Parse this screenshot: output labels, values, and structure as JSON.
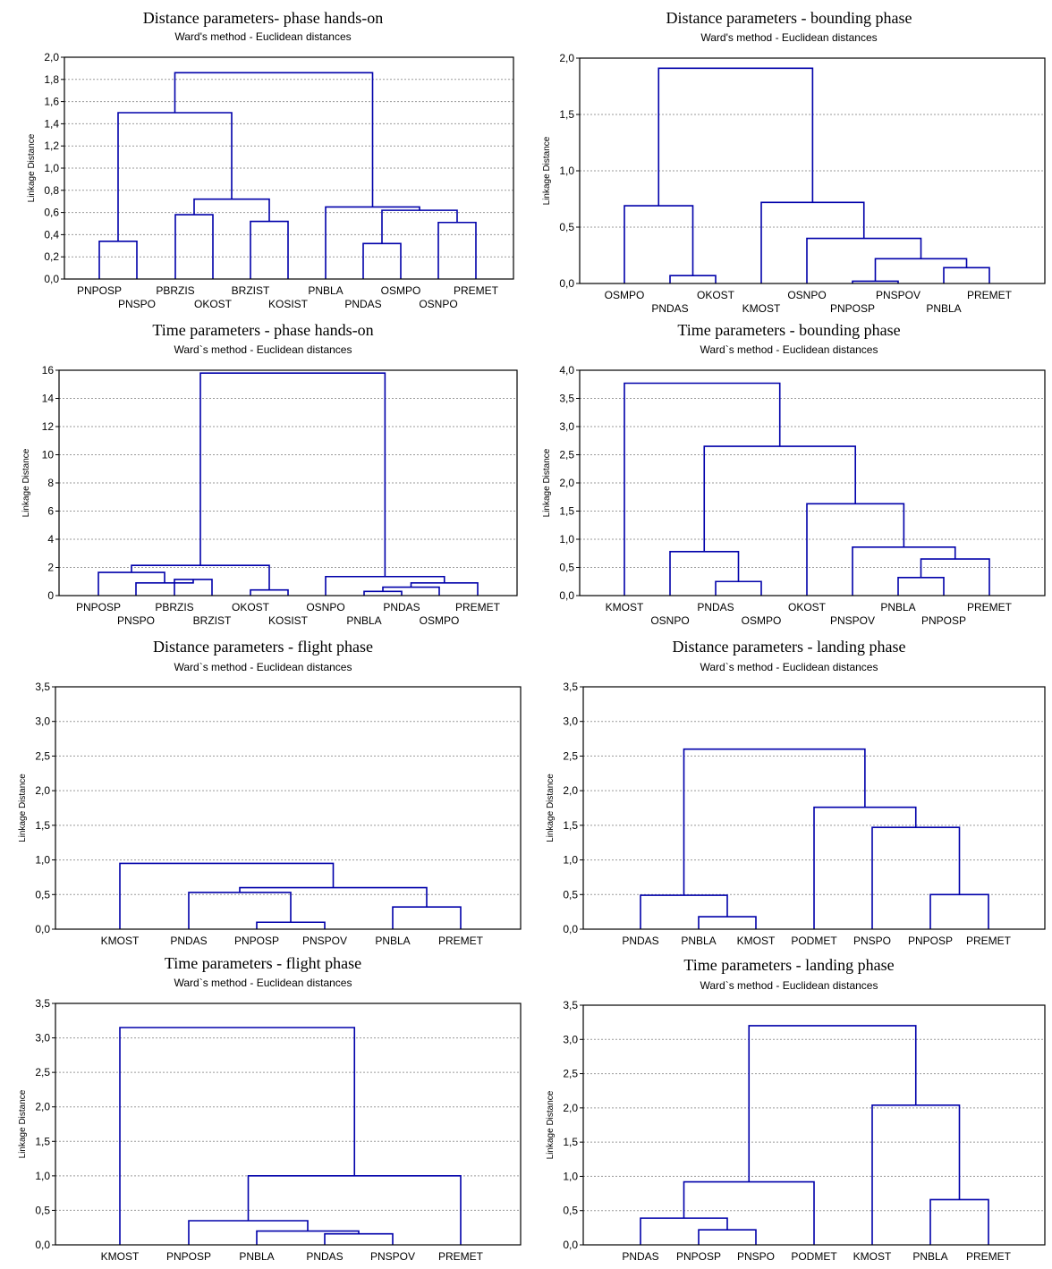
{
  "chart_data": [
    {
      "type": "dendrogram",
      "title": "Distance parameters- phase hands-on",
      "subtitle": "Ward's method - Euclidean distances",
      "ylabel": "Linkage Distance",
      "ylim": [
        0,
        2
      ],
      "yticks": [
        0,
        0.2,
        0.4,
        0.6,
        0.8,
        1.0,
        1.2,
        1.4,
        1.6,
        1.8,
        2.0
      ],
      "decimals": 1,
      "grid": true,
      "leaves": [
        "PNPOSP",
        "PNSPO",
        "PBRZIS",
        "OKOST",
        "BRZIST",
        "KOSIST",
        "PNBLA",
        "PNDAS",
        "OSMPO",
        "OSNPO",
        "PREMET"
      ],
      "merges": [
        {
          "a": 0,
          "b": 1,
          "h": 0.34
        },
        {
          "a": 2,
          "b": 3,
          "h": 0.58
        },
        {
          "a": 4,
          "b": 5,
          "h": 0.52
        },
        {
          "a": 12,
          "b": 13,
          "h": 0.72
        },
        {
          "a": 11,
          "b": 14,
          "h": 1.5
        },
        {
          "a": 7,
          "b": 8,
          "h": 0.32
        },
        {
          "a": 9,
          "b": 10,
          "h": 0.51
        },
        {
          "a": 16,
          "b": 17,
          "h": 0.62
        },
        {
          "a": 6,
          "b": 18,
          "h": 0.65
        },
        {
          "a": 15,
          "b": 19,
          "h": 1.86
        }
      ]
    },
    {
      "type": "dendrogram",
      "title": "Distance parameters - bounding phase",
      "subtitle": "Ward's method - Euclidean distances",
      "ylabel": "Linkage Distance",
      "ylim": [
        0,
        2
      ],
      "yticks": [
        0,
        0.5,
        1.0,
        1.5,
        2.0
      ],
      "decimals": 1,
      "grid": true,
      "leaves": [
        "OSMPO",
        "PNDAS",
        "OKOST",
        "KMOST",
        "OSNPO",
        "PNPOSP",
        "PNSPOV",
        "PNBLA",
        "PREMET"
      ],
      "merges": [
        {
          "a": 1,
          "b": 2,
          "h": 0.07
        },
        {
          "a": 0,
          "b": 9,
          "h": 0.69
        },
        {
          "a": 5,
          "b": 6,
          "h": 0.02
        },
        {
          "a": 7,
          "b": 8,
          "h": 0.14
        },
        {
          "a": 11,
          "b": 12,
          "h": 0.22
        },
        {
          "a": 4,
          "b": 13,
          "h": 0.4
        },
        {
          "a": 3,
          "b": 14,
          "h": 0.72
        },
        {
          "a": 10,
          "b": 15,
          "h": 1.91
        }
      ]
    },
    {
      "type": "dendrogram",
      "title": "Time parameters - phase hands-on",
      "subtitle": "Ward`s method - Euclidean distances",
      "ylabel": "Linkage Distance",
      "ylim": [
        0,
        16
      ],
      "yticks": [
        0,
        2,
        4,
        6,
        8,
        10,
        12,
        14,
        16
      ],
      "decimals": 0,
      "grid": true,
      "leaves": [
        "PNPOSP",
        "PNSPO",
        "PBRZIS",
        "BRZIST",
        "OKOST",
        "KOSIST",
        "OSNPO",
        "PNBLA",
        "PNDAS",
        "OSMPO",
        "PREMET"
      ],
      "merges": [
        {
          "a": 2,
          "b": 3,
          "h": 1.15
        },
        {
          "a": 1,
          "b": 11,
          "h": 0.9
        },
        {
          "a": 0,
          "b": 12,
          "h": 1.65
        },
        {
          "a": 4,
          "b": 5,
          "h": 0.4
        },
        {
          "a": 13,
          "b": 14,
          "h": 2.15
        },
        {
          "a": 7,
          "b": 8,
          "h": 0.3
        },
        {
          "a": 16,
          "b": 9,
          "h": 0.6
        },
        {
          "a": 17,
          "b": 10,
          "h": 0.9
        },
        {
          "a": 6,
          "b": 18,
          "h": 1.35
        },
        {
          "a": 15,
          "b": 19,
          "h": 15.8
        }
      ]
    },
    {
      "type": "dendrogram",
      "title": "Time parameters - bounding phase",
      "subtitle": "Ward`s method - Euclidean distances",
      "ylabel": "Linkage Distance",
      "ylim": [
        0,
        4
      ],
      "yticks": [
        0,
        0.5,
        1.0,
        1.5,
        2.0,
        2.5,
        3.0,
        3.5,
        4.0
      ],
      "decimals": 1,
      "grid": true,
      "leaves": [
        "KMOST",
        "OSNPO",
        "PNDAS",
        "OSMPO",
        "OKOST",
        "PNSPOV",
        "PNBLA",
        "PNPOSP",
        "PREMET"
      ],
      "merges": [
        {
          "a": 2,
          "b": 3,
          "h": 0.25
        },
        {
          "a": 1,
          "b": 9,
          "h": 0.78
        },
        {
          "a": 6,
          "b": 7,
          "h": 0.32
        },
        {
          "a": 11,
          "b": 8,
          "h": 0.65
        },
        {
          "a": 5,
          "b": 12,
          "h": 0.86
        },
        {
          "a": 4,
          "b": 13,
          "h": 1.63
        },
        {
          "a": 10,
          "b": 14,
          "h": 2.65
        },
        {
          "a": 0,
          "b": 15,
          "h": 3.77
        }
      ]
    },
    {
      "type": "dendrogram",
      "title": "Distance parameters - flight phase",
      "subtitle": "Ward`s method - Euclidean distances",
      "ylabel": "Linkage Distance",
      "ylim": [
        0,
        3.5
      ],
      "yticks": [
        0,
        0.5,
        1.0,
        1.5,
        2.0,
        2.5,
        3.0,
        3.5
      ],
      "decimals": 1,
      "grid": true,
      "leaves": [
        "KMOST",
        "PNDAS",
        "PNPOSP",
        "PNSPOV",
        "PNBLA",
        "PREMET"
      ],
      "merges": [
        {
          "a": 2,
          "b": 3,
          "h": 0.1
        },
        {
          "a": 1,
          "b": 6,
          "h": 0.53
        },
        {
          "a": 4,
          "b": 5,
          "h": 0.32
        },
        {
          "a": 7,
          "b": 8,
          "h": 0.6
        },
        {
          "a": 0,
          "b": 9,
          "h": 0.95
        }
      ]
    },
    {
      "type": "dendrogram",
      "title": "Distance parameters - landing phase",
      "subtitle": "Ward`s method - Euclidean distances",
      "ylabel": "Linkage Distance",
      "ylim": [
        0,
        3.5
      ],
      "yticks": [
        0,
        0.5,
        1.0,
        1.5,
        2.0,
        2.5,
        3.0,
        3.5
      ],
      "decimals": 1,
      "grid": true,
      "leaves": [
        "PNDAS",
        "PNBLA",
        "KMOST",
        "PODMET",
        "PNSPO",
        "PNPOSP",
        "PREMET"
      ],
      "merges": [
        {
          "a": 1,
          "b": 2,
          "h": 0.18
        },
        {
          "a": 0,
          "b": 7,
          "h": 0.49
        },
        {
          "a": 5,
          "b": 6,
          "h": 0.5
        },
        {
          "a": 4,
          "b": 9,
          "h": 1.47
        },
        {
          "a": 3,
          "b": 10,
          "h": 1.76
        },
        {
          "a": 8,
          "b": 11,
          "h": 2.6
        }
      ]
    },
    {
      "type": "dendrogram",
      "title": "Time parameters - flight phase",
      "subtitle": "Ward`s method - Euclidean distances",
      "ylabel": "Linkage Distance",
      "ylim": [
        0,
        3.5
      ],
      "yticks": [
        0,
        0.5,
        1.0,
        1.5,
        2.0,
        2.5,
        3.0,
        3.5
      ],
      "decimals": 1,
      "grid": true,
      "leaves": [
        "KMOST",
        "PNPOSP",
        "PNBLA",
        "PNDAS",
        "PNSPOV",
        "PREMET"
      ],
      "merges": [
        {
          "a": 3,
          "b": 4,
          "h": 0.16
        },
        {
          "a": 2,
          "b": 6,
          "h": 0.2
        },
        {
          "a": 1,
          "b": 7,
          "h": 0.35
        },
        {
          "a": 8,
          "b": 5,
          "h": 1.0
        },
        {
          "a": 0,
          "b": 9,
          "h": 3.15
        }
      ]
    },
    {
      "type": "dendrogram",
      "title": "Time parameters - landing phase",
      "subtitle": "Ward`s method - Euclidean distances",
      "ylabel": "Linkage Distance",
      "ylim": [
        0,
        3.5
      ],
      "yticks": [
        0,
        0.5,
        1.0,
        1.5,
        2.0,
        2.5,
        3.0,
        3.5
      ],
      "decimals": 1,
      "grid": true,
      "leaves": [
        "PNDAS",
        "PNPOSP",
        "PNSPO",
        "PODMET",
        "KMOST",
        "PNBLA",
        "PREMET"
      ],
      "merges": [
        {
          "a": 1,
          "b": 2,
          "h": 0.22
        },
        {
          "a": 0,
          "b": 7,
          "h": 0.39
        },
        {
          "a": 8,
          "b": 3,
          "h": 0.92
        },
        {
          "a": 5,
          "b": 6,
          "h": 0.66
        },
        {
          "a": 4,
          "b": 10,
          "h": 2.04
        },
        {
          "a": 9,
          "b": 11,
          "h": 3.2
        }
      ]
    }
  ],
  "style": {
    "line_color": "#0000aa",
    "axis_color": "#000000",
    "grid_color": "#9a9a9a"
  }
}
